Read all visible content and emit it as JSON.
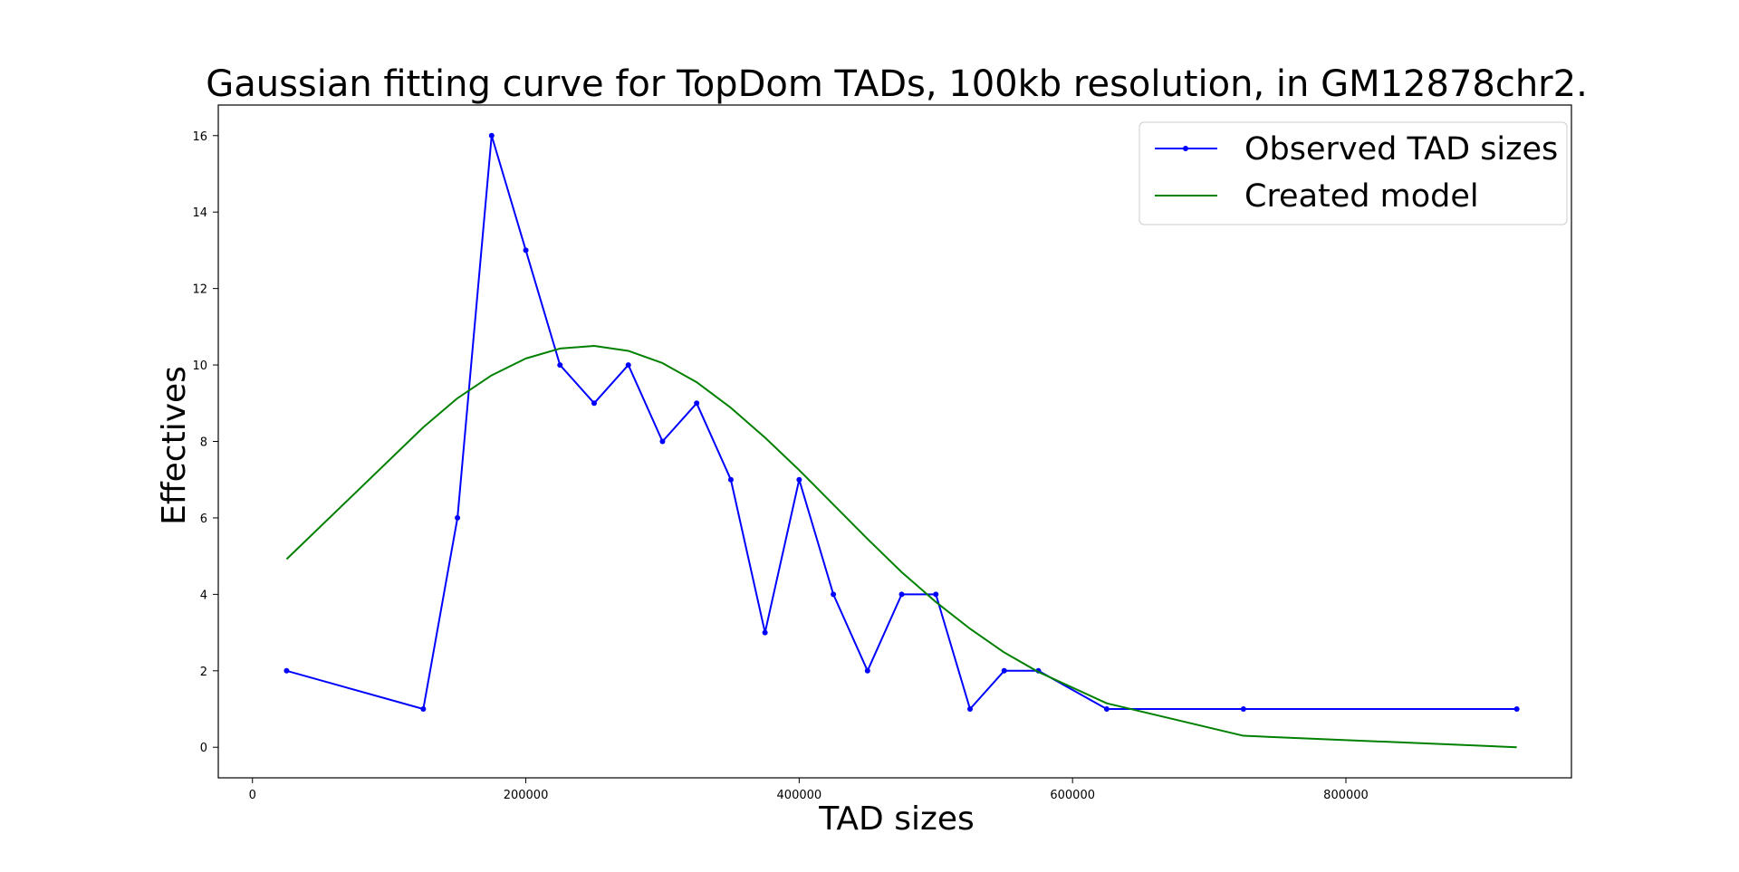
{
  "chart_data": {
    "type": "line",
    "title": "Gaussian fitting curve for TopDom TADs, 100kb resolution, in GM12878chr2.",
    "xlabel": "TAD sizes",
    "ylabel": "Effectives",
    "xlim": [
      -25000,
      965000
    ],
    "ylim": [
      -0.8,
      16.8
    ],
    "xticks": [
      0,
      200000,
      400000,
      600000,
      800000
    ],
    "yticks": [
      0,
      2,
      4,
      6,
      8,
      10,
      12,
      14,
      16
    ],
    "grid": false,
    "legend_position": "top-right",
    "series": [
      {
        "name": "Observed TAD sizes",
        "color": "#0000ff",
        "marker": "dot",
        "x": [
          25000,
          125000,
          150000,
          175000,
          200000,
          225000,
          250000,
          275000,
          300000,
          325000,
          350000,
          375000,
          400000,
          425000,
          450000,
          475000,
          500000,
          525000,
          550000,
          575000,
          625000,
          725000,
          925000
        ],
        "y": [
          2,
          1,
          6,
          16,
          13,
          10,
          9,
          10,
          8,
          9,
          7,
          3,
          7,
          4,
          2,
          4,
          4,
          1,
          2,
          2,
          1,
          1,
          1
        ]
      },
      {
        "name": "Created model",
        "color": "#008000",
        "marker": "none",
        "x": [
          25000,
          125000,
          150000,
          175000,
          200000,
          225000,
          250000,
          275000,
          300000,
          325000,
          350000,
          375000,
          400000,
          425000,
          450000,
          475000,
          500000,
          525000,
          550000,
          575000,
          625000,
          725000,
          925000
        ],
        "y": [
          4.92,
          8.37,
          9.13,
          9.73,
          10.17,
          10.43,
          10.5,
          10.37,
          10.05,
          9.55,
          8.88,
          8.1,
          7.25,
          6.35,
          5.45,
          4.58,
          3.8,
          3.1,
          2.48,
          1.97,
          1.15,
          0.3,
          0.0
        ]
      }
    ]
  }
}
